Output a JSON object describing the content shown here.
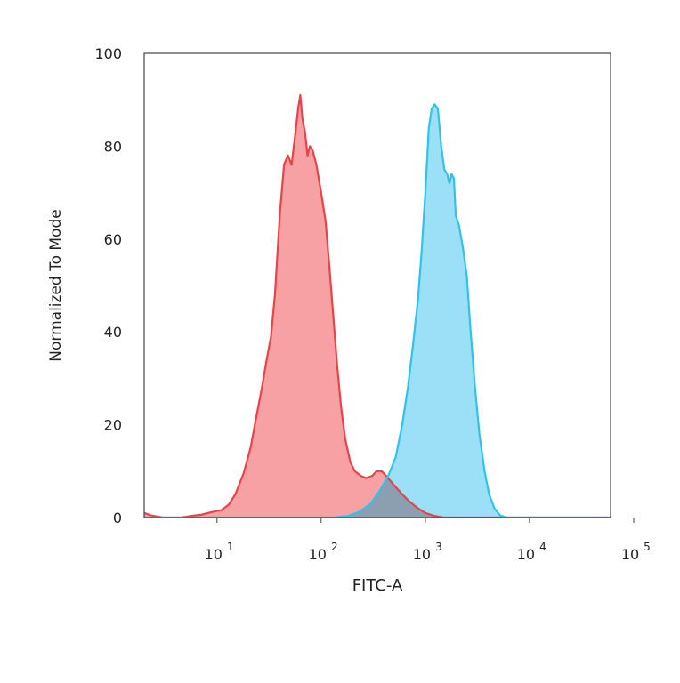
{
  "chart_data": {
    "type": "area",
    "title": "",
    "xlabel": "FITC-A",
    "ylabel": "Normalized To Mode",
    "xscale": "log",
    "xlim": [
      2,
      60000
    ],
    "ylim": [
      0,
      100
    ],
    "yticks": [
      {
        "value": 0,
        "label": "0"
      },
      {
        "value": 20,
        "label": "20"
      },
      {
        "value": 40,
        "label": "40"
      },
      {
        "value": 60,
        "label": "60"
      },
      {
        "value": 80,
        "label": "80"
      },
      {
        "value": 100,
        "label": "100"
      }
    ],
    "xticks": [
      {
        "value": 10,
        "base": "10",
        "exp": "1"
      },
      {
        "value": 100,
        "base": "10",
        "exp": "2"
      },
      {
        "value": 1000,
        "base": "10",
        "exp": "3"
      },
      {
        "value": 10000,
        "base": "10",
        "exp": "4"
      },
      {
        "value": 100000,
        "base": "10",
        "exp": "5"
      }
    ],
    "grid": false,
    "legend": "none",
    "overlap_color": "#8c9fb0",
    "series": [
      {
        "color_line": "#e8434a",
        "color_fill": "#f7a1a4",
        "points": [
          [
            2,
            1
          ],
          [
            2.3,
            0.5
          ],
          [
            3,
            0
          ],
          [
            4.5,
            0
          ],
          [
            5.5,
            0.3
          ],
          [
            7,
            0.6
          ],
          [
            9,
            1.2
          ],
          [
            11,
            1.6
          ],
          [
            13,
            2.8
          ],
          [
            15,
            5
          ],
          [
            18,
            9.5
          ],
          [
            21,
            15
          ],
          [
            24,
            22
          ],
          [
            27,
            28
          ],
          [
            30,
            34
          ],
          [
            33,
            39
          ],
          [
            36,
            48
          ],
          [
            40,
            65
          ],
          [
            44,
            76
          ],
          [
            48,
            78
          ],
          [
            52,
            76
          ],
          [
            56,
            82
          ],
          [
            60,
            88
          ],
          [
            63,
            91
          ],
          [
            66,
            86
          ],
          [
            70,
            83
          ],
          [
            74,
            78
          ],
          [
            78,
            80
          ],
          [
            83,
            79
          ],
          [
            90,
            76
          ],
          [
            100,
            70
          ],
          [
            110,
            64
          ],
          [
            120,
            54
          ],
          [
            130,
            44
          ],
          [
            142,
            33
          ],
          [
            155,
            24
          ],
          [
            170,
            17
          ],
          [
            190,
            12
          ],
          [
            210,
            10
          ],
          [
            240,
            9
          ],
          [
            270,
            8.5
          ],
          [
            310,
            9
          ],
          [
            340,
            10
          ],
          [
            380,
            10
          ],
          [
            420,
            9
          ],
          [
            500,
            7
          ],
          [
            600,
            5
          ],
          [
            700,
            3.5
          ],
          [
            850,
            2
          ],
          [
            1000,
            1
          ],
          [
            1200,
            0.4
          ],
          [
            1500,
            0
          ],
          [
            60000,
            0
          ]
        ]
      },
      {
        "color_line": "#2ec3ea",
        "color_fill": "#9be0f6",
        "points": [
          [
            2,
            0
          ],
          [
            130,
            0
          ],
          [
            180,
            0.3
          ],
          [
            230,
            1.2
          ],
          [
            300,
            3
          ],
          [
            370,
            6
          ],
          [
            440,
            9
          ],
          [
            520,
            13
          ],
          [
            600,
            20
          ],
          [
            680,
            28
          ],
          [
            760,
            37
          ],
          [
            850,
            47
          ],
          [
            920,
            57
          ],
          [
            1000,
            70
          ],
          [
            1080,
            84
          ],
          [
            1150,
            88
          ],
          [
            1230,
            89
          ],
          [
            1320,
            88
          ],
          [
            1420,
            80
          ],
          [
            1520,
            75
          ],
          [
            1620,
            74
          ],
          [
            1700,
            72
          ],
          [
            1790,
            74
          ],
          [
            1880,
            73
          ],
          [
            1960,
            65
          ],
          [
            2100,
            63
          ],
          [
            2300,
            58
          ],
          [
            2500,
            52
          ],
          [
            2700,
            41
          ],
          [
            3000,
            28
          ],
          [
            3300,
            18
          ],
          [
            3700,
            10
          ],
          [
            4100,
            5
          ],
          [
            4600,
            2
          ],
          [
            5200,
            0.5
          ],
          [
            6000,
            0
          ],
          [
            60000,
            0
          ]
        ]
      }
    ]
  }
}
